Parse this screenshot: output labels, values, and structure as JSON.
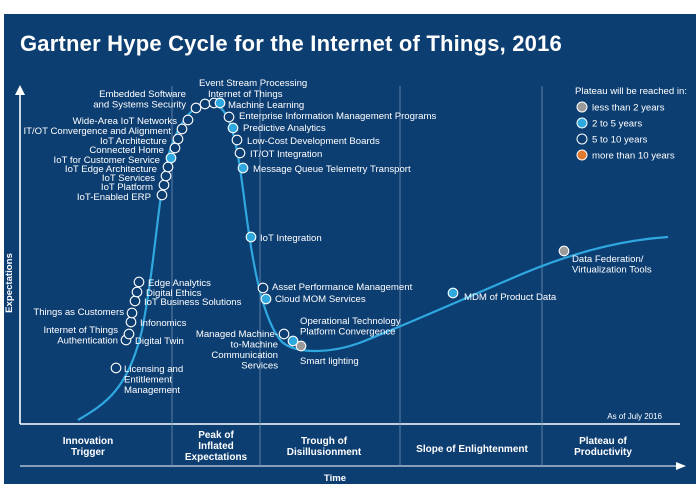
{
  "title": "Gartner Hype Cycle for the Internet of Things, 2016",
  "y_axis_label": "Expectations",
  "x_axis_label": "Time",
  "as_of": "As of July 2016",
  "legend": {
    "title": "Plateau will be reached in:",
    "items": [
      {
        "label": "less than 2 years",
        "color": "#9a9a9a"
      },
      {
        "label": "2 to 5 years",
        "color": "#2fa8e0"
      },
      {
        "label": "5 to 10 years",
        "color": "#0d3e72"
      },
      {
        "label": "more than 10 years",
        "color": "#e07a2f"
      }
    ]
  },
  "phases": [
    {
      "lines": [
        "Innovation",
        "Trigger"
      ]
    },
    {
      "lines": [
        "Peak of",
        "Inflated",
        "Expectations"
      ]
    },
    {
      "lines": [
        "Trough of",
        "Disillusionment"
      ]
    },
    {
      "lines": [
        "Slope of Enlightenment"
      ]
    },
    {
      "lines": [
        "Plateau of",
        "Productivity"
      ]
    }
  ],
  "technologies": [
    {
      "name": "Licensing and Entitlement Management",
      "lines": [
        "Licensing and",
        "Entitlement",
        "Management"
      ],
      "plateau": "5 to 10 years"
    },
    {
      "name": "Digital Twin",
      "lines": [
        "Digital Twin"
      ],
      "plateau": "5 to 10 years"
    },
    {
      "name": "Internet of Things Authentication",
      "lines": [
        "Internet of Things",
        "Authentication"
      ],
      "plateau": "5 to 10 years"
    },
    {
      "name": "Infonomics",
      "lines": [
        "Infonomics"
      ],
      "plateau": "5 to 10 years"
    },
    {
      "name": "Things as Customers",
      "lines": [
        "Things as Customers"
      ],
      "plateau": "5 to 10 years"
    },
    {
      "name": "IoT Business Solutions",
      "lines": [
        "IoT Business Solutions"
      ],
      "plateau": "5 to 10 years"
    },
    {
      "name": "Digital Ethics",
      "lines": [
        "Digital Ethics"
      ],
      "plateau": "5 to 10 years"
    },
    {
      "name": "Edge Analytics",
      "lines": [
        "Edge Analytics"
      ],
      "plateau": "5 to 10 years"
    },
    {
      "name": "IoT-Enabled ERP",
      "lines": [
        "IoT-Enabled ERP"
      ],
      "plateau": "5 to 10 years"
    },
    {
      "name": "IoT Platform",
      "lines": [
        "IoT Platform"
      ],
      "plateau": "5 to 10 years"
    },
    {
      "name": "IoT Services",
      "lines": [
        "IoT Services"
      ],
      "plateau": "5 to 10 years"
    },
    {
      "name": "IoT Edge Architecture",
      "lines": [
        "IoT Edge Architecture"
      ],
      "plateau": "5 to 10 years"
    },
    {
      "name": "IoT for Customer Service",
      "lines": [
        "IoT for Customer Service"
      ],
      "plateau": "2 to 5 years"
    },
    {
      "name": "Connected Home",
      "lines": [
        "Connected Home"
      ],
      "plateau": "5 to 10 years"
    },
    {
      "name": "IoT Architecture",
      "lines": [
        "IoT Architecture"
      ],
      "plateau": "5 to 10 years"
    },
    {
      "name": "IT/OT Convergence and Alignment",
      "lines": [
        "IT/OT Convergence and Alignment"
      ],
      "plateau": "5 to 10 years"
    },
    {
      "name": "Wide-Area IoT Networks",
      "lines": [
        "Wide-Area IoT Networks"
      ],
      "plateau": "5 to 10 years"
    },
    {
      "name": "Embedded Software and Systems Security",
      "lines": [
        "Embedded Software",
        "and Systems Security"
      ],
      "plateau": "5 to 10 years"
    },
    {
      "name": "Event Stream Processing",
      "lines": [
        "Event Stream Processing"
      ],
      "plateau": "5 to 10 years"
    },
    {
      "name": "Internet of Things",
      "lines": [
        "Internet of Things"
      ],
      "plateau": "5 to 10 years"
    },
    {
      "name": "Machine Learning",
      "lines": [
        "Machine Learning"
      ],
      "plateau": "2 to 5 years"
    },
    {
      "name": "Enterprise Information Management Programs",
      "lines": [
        "Enterprise Information Management Programs"
      ],
      "plateau": "5 to 10 years"
    },
    {
      "name": "Predictive Analytics",
      "lines": [
        "Predictive Analytics"
      ],
      "plateau": "2 to 5 years"
    },
    {
      "name": "Low-Cost Development Boards",
      "lines": [
        "Low-Cost Development Boards"
      ],
      "plateau": "5 to 10 years"
    },
    {
      "name": "IT/OT Integration",
      "lines": [
        "IT/OT Integration"
      ],
      "plateau": "5 to 10 years"
    },
    {
      "name": "Message Queue Telemetry Transport",
      "lines": [
        "Message Queue Telemetry Transport"
      ],
      "plateau": "2 to 5 years"
    },
    {
      "name": "IoT Integration",
      "lines": [
        "IoT Integration"
      ],
      "plateau": "2 to 5 years"
    },
    {
      "name": "Asset Performance Management",
      "lines": [
        "Asset Performance Management"
      ],
      "plateau": "5 to 10 years"
    },
    {
      "name": "Cloud MOM Services",
      "lines": [
        "Cloud MOM Services"
      ],
      "plateau": "2 to 5 years"
    },
    {
      "name": "Operational Technology Platform Convergence",
      "lines": [
        "Operational Technology",
        "Platform Convergence"
      ],
      "plateau": "5 to 10 years"
    },
    {
      "name": "Managed Machine-to-Machine Communication Services",
      "lines": [
        "Managed Machine-",
        "to-Machine",
        "Communication",
        "Services"
      ],
      "plateau": "2 to 5 years"
    },
    {
      "name": "Smart lighting",
      "lines": [
        "Smart lighting"
      ],
      "plateau": "less than 2 years"
    },
    {
      "name": "MDM of Product Data",
      "lines": [
        "MDM of Product Data"
      ],
      "plateau": "2 to 5 years"
    },
    {
      "name": "Data Federation/Virtualization Tools",
      "lines": [
        "Data Federation/",
        "Virtualization Tools"
      ],
      "plateau": "less than 2 years"
    }
  ]
}
